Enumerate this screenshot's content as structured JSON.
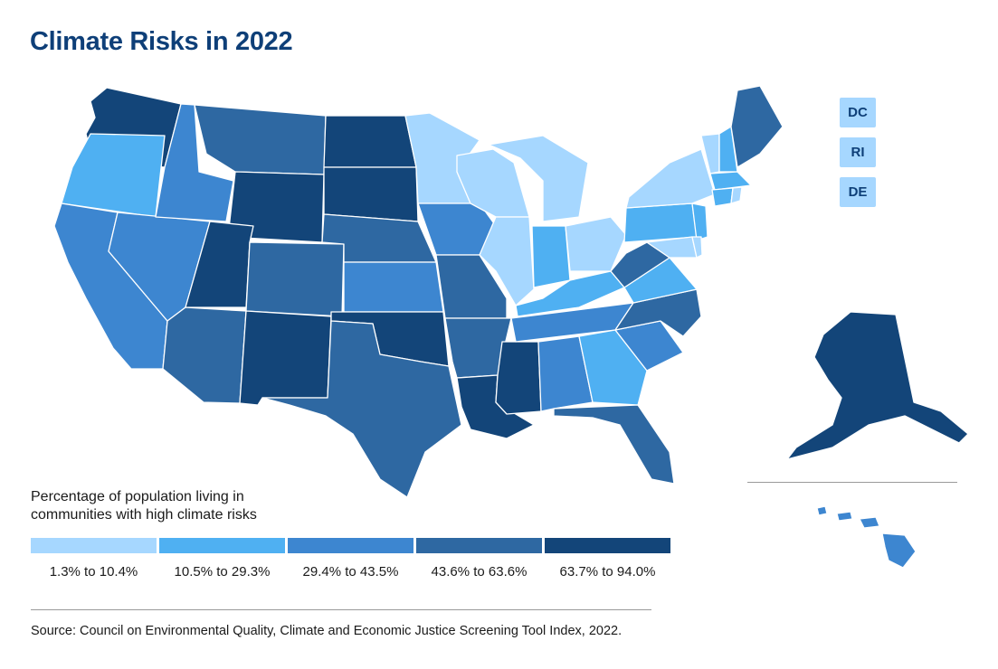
{
  "title": "Climate Risks in 2022",
  "legend": {
    "title": "Percentage of population living in communities with high climate risks",
    "bins": [
      {
        "label": "1.3% to 10.4%",
        "color": "#a6d7ff"
      },
      {
        "label": "10.5% to 29.3%",
        "color": "#4fb0f2"
      },
      {
        "label": "29.4% to 43.5%",
        "color": "#3d86d0"
      },
      {
        "label": "43.6% to 63.6%",
        "color": "#2e68a2"
      },
      {
        "label": "63.7% to 94.0%",
        "color": "#134579"
      }
    ]
  },
  "small_states": [
    "DC",
    "RI",
    "DE"
  ],
  "source": "Source: Council on Environmental Quality, Climate and Economic Justice Screening Tool Index, 2022.",
  "state_bins": {
    "WA": 4,
    "OR": 1,
    "CA": 2,
    "NV": 2,
    "ID": 2,
    "MT": 3,
    "WY": 4,
    "UT": 4,
    "AZ": 3,
    "CO": 3,
    "NM": 4,
    "ND": 4,
    "SD": 4,
    "NE": 3,
    "KS": 2,
    "OK": 4,
    "TX": 3,
    "MN": 0,
    "IA": 2,
    "MO": 3,
    "AR": 3,
    "LA": 4,
    "WI": 0,
    "IL": 0,
    "MS": 4,
    "MI": 0,
    "IN": 1,
    "OH": 0,
    "KY": 1,
    "TN": 2,
    "AL": 2,
    "GA": 1,
    "FL": 3,
    "SC": 2,
    "NC": 3,
    "VA": 1,
    "WV": 3,
    "PA": 1,
    "NY": 0,
    "NJ": 1,
    "MD": 0,
    "DE": 0,
    "VT": 0,
    "NH": 1,
    "MA": 1,
    "CT": 1,
    "RI": 0,
    "ME": 3,
    "AK": 4,
    "HI": 2,
    "DC": 0
  }
}
